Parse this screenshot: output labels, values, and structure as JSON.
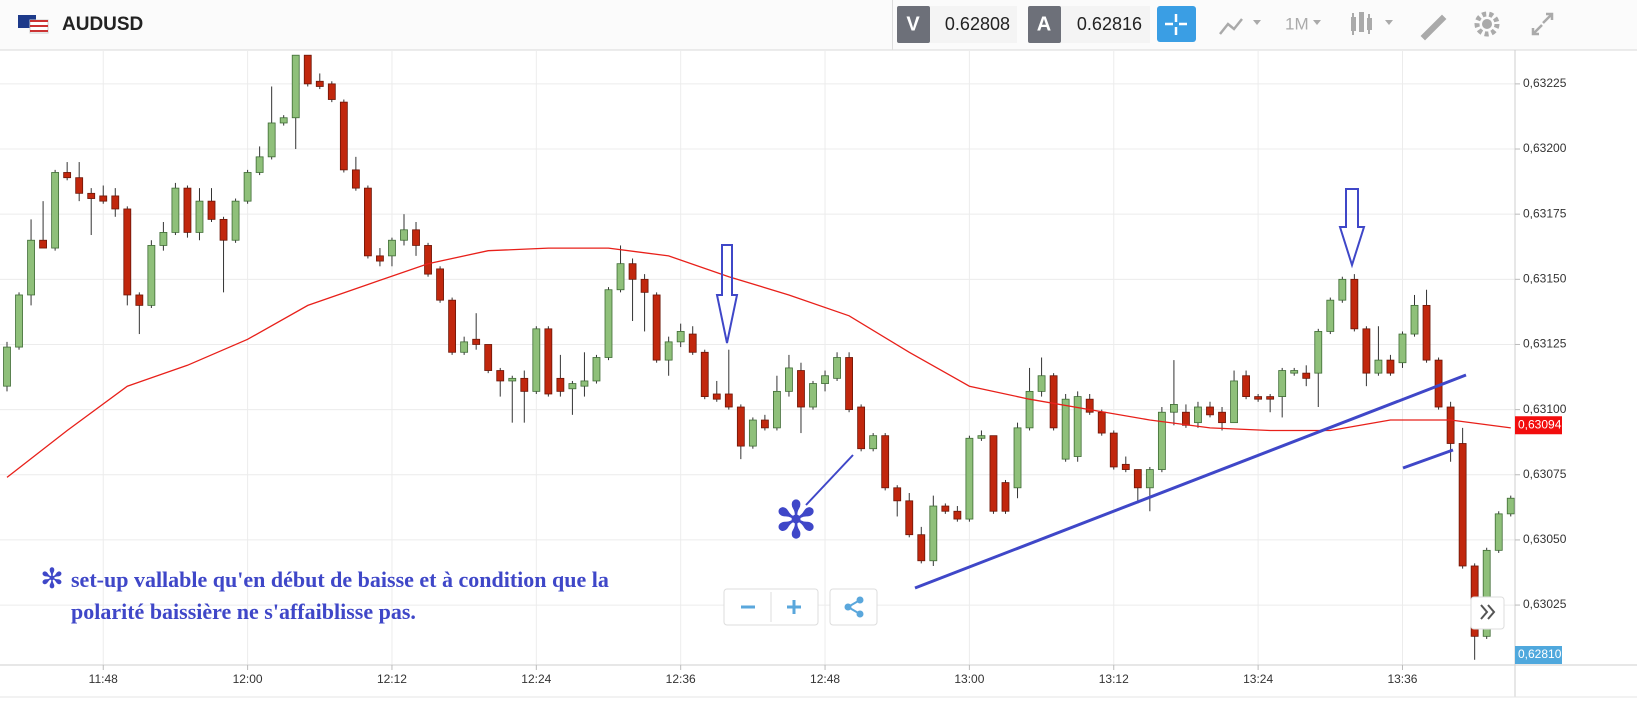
{
  "header": {
    "symbol": "AUDUSD",
    "bid_label": "V",
    "bid": "0.62808",
    "ask_label": "A",
    "ask": "0.62816",
    "timeframe": "1M"
  },
  "annotation": {
    "marker": "✻",
    "callout_marker": "✻",
    "lines": [
      "set-up vallable qu'en début de baisse et à condition que la",
      "polarité baissière ne s'affaiblisse pas."
    ]
  },
  "chart_data": {
    "type": "candlestick",
    "up_color": "#8fc07a",
    "down_color": "#c1270d",
    "grid": true,
    "ylim": [
      0.63002,
      0.63238
    ],
    "yticks": [
      {
        "value": 0.63025,
        "label": "0,63025"
      },
      {
        "value": 0.6305,
        "label": "0,63050"
      },
      {
        "value": 0.63075,
        "label": "0,63075"
      },
      {
        "value": 0.631,
        "label": "0,63100"
      },
      {
        "value": 0.63125,
        "label": "0,63125"
      },
      {
        "value": 0.6315,
        "label": "0,63150"
      },
      {
        "value": 0.63175,
        "label": "0,63175"
      },
      {
        "value": 0.632,
        "label": "0,63200"
      },
      {
        "value": 0.63225,
        "label": "0,63225"
      }
    ],
    "xticks": [
      "11:48",
      "12:00",
      "12:12",
      "12:24",
      "12:36",
      "12:48",
      "13:00",
      "13:12",
      "13:24",
      "13:36"
    ],
    "x": [
      "11:40",
      "11:41",
      "11:42",
      "11:43",
      "11:44",
      "11:45",
      "11:46",
      "11:47",
      "11:48",
      "11:49",
      "11:50",
      "11:51",
      "11:52",
      "11:53",
      "11:54",
      "11:55",
      "11:56",
      "11:57",
      "11:58",
      "11:59",
      "12:00",
      "12:01",
      "12:02",
      "12:03",
      "12:04",
      "12:05",
      "12:06",
      "12:07",
      "12:08",
      "12:09",
      "12:10",
      "12:11",
      "12:12",
      "12:13",
      "12:14",
      "12:15",
      "12:16",
      "12:17",
      "12:18",
      "12:19",
      "12:20",
      "12:21",
      "12:22",
      "12:23",
      "12:24",
      "12:25",
      "12:26",
      "12:27",
      "12:28",
      "12:29",
      "12:30",
      "12:31",
      "12:32",
      "12:33",
      "12:34",
      "12:35",
      "12:36",
      "12:37",
      "12:38",
      "12:39",
      "12:40",
      "12:41",
      "12:42",
      "12:43",
      "12:44",
      "12:45",
      "12:46",
      "12:47",
      "12:48",
      "12:49",
      "12:50",
      "12:51",
      "12:52",
      "12:53",
      "12:54",
      "12:55",
      "12:56",
      "12:57",
      "12:58",
      "12:59",
      "13:00",
      "13:01",
      "13:02",
      "13:03",
      "13:04",
      "13:05",
      "13:06",
      "13:07",
      "13:08",
      "13:09",
      "13:10",
      "13:11",
      "13:12",
      "13:13",
      "13:14",
      "13:15",
      "13:16",
      "13:17",
      "13:18",
      "13:19",
      "13:20",
      "13:21",
      "13:22",
      "13:23",
      "13:24",
      "13:25",
      "13:26",
      "13:27",
      "13:28",
      "13:29",
      "13:30",
      "13:31",
      "13:32",
      "13:33",
      "13:34",
      "13:35",
      "13:36",
      "13:37",
      "13:38",
      "13:39",
      "13:40",
      "13:41",
      "13:42",
      "13:43",
      "13:44",
      "13:45"
    ],
    "open": [
      0.63109,
      0.63124,
      0.63144,
      0.63165,
      0.63162,
      0.63191,
      0.63189,
      0.63183,
      0.63182,
      0.63182,
      0.63177,
      0.63144,
      0.6314,
      0.63163,
      0.63168,
      0.63185,
      0.63168,
      0.6318,
      0.63173,
      0.63165,
      0.6318,
      0.63191,
      0.63197,
      0.6321,
      0.63212,
      0.63236,
      0.63226,
      0.63225,
      0.63218,
      0.63192,
      0.63185,
      0.63159,
      0.63159,
      0.63165,
      0.63169,
      0.63163,
      0.63154,
      0.63142,
      0.63122,
      0.63127,
      0.63125,
      0.63115,
      0.63111,
      0.63112,
      0.63107,
      0.63131,
      0.63112,
      0.63108,
      0.63109,
      0.63111,
      0.6312,
      0.63146,
      0.63156,
      0.6315,
      0.63144,
      0.63119,
      0.63126,
      0.63129,
      0.63122,
      0.63106,
      0.63106,
      0.63101,
      0.63086,
      0.63096,
      0.63093,
      0.63107,
      0.63115,
      0.63101,
      0.6311,
      0.63112,
      0.6312,
      0.63101,
      0.63085,
      0.6309,
      0.6307,
      0.63065,
      0.63052,
      0.63042,
      0.63063,
      0.63061,
      0.63058,
      0.63089,
      0.6309,
      0.63072,
      0.6307,
      0.63093,
      0.63107,
      0.63113,
      0.63081,
      0.63082,
      0.63104,
      0.63099,
      0.63091,
      0.63079,
      0.63077,
      0.6307,
      0.63077,
      0.63099,
      0.63099,
      0.63095,
      0.63101,
      0.63099,
      0.63095,
      0.63113,
      0.63105,
      0.63105,
      0.63105,
      0.63114,
      0.63114,
      0.63114,
      0.6313,
      0.63142,
      0.6315,
      0.63131,
      0.63114,
      0.63119,
      0.63118,
      0.63129,
      0.6314,
      0.63119,
      0.63101,
      0.63087,
      0.6304,
      0.63013,
      0.63046,
      0.6306
    ],
    "high": [
      0.63126,
      0.63145,
      0.63173,
      0.6318,
      0.63192,
      0.63195,
      0.63195,
      0.63185,
      0.63186,
      0.63185,
      0.63178,
      0.63145,
      0.63165,
      0.63172,
      0.63187,
      0.63186,
      0.63185,
      0.63185,
      0.63174,
      0.63181,
      0.63192,
      0.63201,
      0.63224,
      0.63213,
      0.63236,
      0.63236,
      0.63229,
      0.63226,
      0.63219,
      0.63197,
      0.63186,
      0.63162,
      0.63166,
      0.63175,
      0.63172,
      0.63164,
      0.63155,
      0.63143,
      0.63128,
      0.63137,
      0.63125,
      0.63116,
      0.63113,
      0.63115,
      0.63132,
      0.63132,
      0.63121,
      0.63111,
      0.63122,
      0.63121,
      0.63147,
      0.63163,
      0.63158,
      0.63152,
      0.63145,
      0.63128,
      0.63133,
      0.63132,
      0.63123,
      0.63111,
      0.63123,
      0.63102,
      0.63097,
      0.63098,
      0.63113,
      0.63121,
      0.63118,
      0.63111,
      0.63115,
      0.63122,
      0.63122,
      0.63102,
      0.63091,
      0.63091,
      0.63071,
      0.63068,
      0.63055,
      0.63067,
      0.63064,
      0.63063,
      0.6309,
      0.63092,
      0.6309,
      0.63073,
      0.63095,
      0.63116,
      0.6312,
      0.63114,
      0.63106,
      0.63107,
      0.63106,
      0.631,
      0.63092,
      0.63082,
      0.63077,
      0.63078,
      0.63101,
      0.63119,
      0.63102,
      0.63103,
      0.63103,
      0.63101,
      0.63115,
      0.63115,
      0.63106,
      0.63106,
      0.63116,
      0.63116,
      0.63117,
      0.63131,
      0.63143,
      0.63151,
      0.63152,
      0.63132,
      0.63132,
      0.63121,
      0.6313,
      0.63144,
      0.63146,
      0.6312,
      0.63103,
      0.63093,
      0.63041,
      0.63047,
      0.63061,
      0.63067
    ],
    "low": [
      0.63107,
      0.63123,
      0.6314,
      0.63162,
      0.63161,
      0.63188,
      0.6318,
      0.63167,
      0.63179,
      0.63174,
      0.6314,
      0.63129,
      0.63139,
      0.63161,
      0.63167,
      0.63166,
      0.63165,
      0.63172,
      0.63145,
      0.63164,
      0.63179,
      0.6319,
      0.63196,
      0.63209,
      0.632,
      0.63224,
      0.63223,
      0.63218,
      0.63191,
      0.63184,
      0.63158,
      0.63155,
      0.63155,
      0.63163,
      0.63159,
      0.63151,
      0.63141,
      0.63121,
      0.63121,
      0.63123,
      0.63114,
      0.63105,
      0.63095,
      0.63095,
      0.63106,
      0.63105,
      0.63105,
      0.63098,
      0.63105,
      0.6311,
      0.63119,
      0.63145,
      0.63134,
      0.6313,
      0.63118,
      0.63113,
      0.63124,
      0.63121,
      0.63104,
      0.63103,
      0.631,
      0.63081,
      0.63085,
      0.63092,
      0.63092,
      0.63105,
      0.63091,
      0.631,
      0.63107,
      0.63111,
      0.63099,
      0.63084,
      0.63084,
      0.63069,
      0.63059,
      0.63051,
      0.63041,
      0.6304,
      0.6306,
      0.63057,
      0.63057,
      0.63088,
      0.6306,
      0.6306,
      0.63066,
      0.63092,
      0.63105,
      0.63092,
      0.6308,
      0.6308,
      0.63098,
      0.6309,
      0.63077,
      0.63076,
      0.63064,
      0.63061,
      0.63076,
      0.63094,
      0.63093,
      0.63093,
      0.63097,
      0.63092,
      0.63095,
      0.63104,
      0.63103,
      0.63099,
      0.63097,
      0.63113,
      0.63109,
      0.63101,
      0.63129,
      0.63141,
      0.6313,
      0.63109,
      0.63113,
      0.63113,
      0.63116,
      0.63128,
      0.63118,
      0.631,
      0.6308,
      0.63039,
      0.63004,
      0.63012,
      0.63045,
      0.63059
    ],
    "close": [
      0.63124,
      0.63144,
      0.63165,
      0.63162,
      0.63191,
      0.63189,
      0.63183,
      0.63181,
      0.6318,
      0.63177,
      0.63144,
      0.6314,
      0.63163,
      0.63168,
      0.63185,
      0.63168,
      0.6318,
      0.63173,
      0.63165,
      0.6318,
      0.63191,
      0.63197,
      0.6321,
      0.63212,
      0.63236,
      0.63225,
      0.63224,
      0.63219,
      0.63192,
      0.63185,
      0.63159,
      0.63157,
      0.63165,
      0.63169,
      0.63163,
      0.63152,
      0.63142,
      0.63122,
      0.63126,
      0.63125,
      0.63115,
      0.63111,
      0.63112,
      0.63107,
      0.63131,
      0.63106,
      0.63107,
      0.6311,
      0.63111,
      0.6312,
      0.63146,
      0.63156,
      0.6315,
      0.63145,
      0.63119,
      0.63126,
      0.6313,
      0.63122,
      0.63105,
      0.63104,
      0.63101,
      0.63086,
      0.63096,
      0.63093,
      0.63107,
      0.63116,
      0.63101,
      0.6311,
      0.63113,
      0.6312,
      0.631,
      0.63085,
      0.6309,
      0.6307,
      0.63065,
      0.63052,
      0.63042,
      0.63063,
      0.63061,
      0.63058,
      0.63089,
      0.6309,
      0.63061,
      0.63061,
      0.63093,
      0.63107,
      0.63113,
      0.63093,
      0.63104,
      0.63105,
      0.63099,
      0.63091,
      0.63078,
      0.63077,
      0.6307,
      0.63077,
      0.63099,
      0.63102,
      0.63094,
      0.63101,
      0.63098,
      0.63095,
      0.63111,
      0.63105,
      0.63104,
      0.63104,
      0.63115,
      0.63115,
      0.63112,
      0.6313,
      0.63142,
      0.6315,
      0.63131,
      0.63114,
      0.63119,
      0.63114,
      0.63129,
      0.6314,
      0.63119,
      0.63101,
      0.63087,
      0.6304,
      0.63013,
      0.63046,
      0.6306,
      0.63066
    ],
    "moving_average": {
      "color": "#e8201a",
      "x": [
        "11:40",
        "11:45",
        "11:50",
        "11:55",
        "12:00",
        "12:05",
        "12:10",
        "12:15",
        "12:20",
        "12:25",
        "12:30",
        "12:35",
        "12:40",
        "12:45",
        "12:50",
        "12:55",
        "13:00",
        "13:05",
        "13:10",
        "13:15",
        "13:20",
        "13:25",
        "13:30",
        "13:35",
        "13:40",
        "13:45"
      ],
      "values": [
        0.63074,
        0.63092,
        0.63109,
        0.63117,
        0.63127,
        0.6314,
        0.63148,
        0.63156,
        0.63161,
        0.63162,
        0.63162,
        0.63159,
        0.63151,
        0.63144,
        0.63136,
        0.63122,
        0.63109,
        0.63104,
        0.631,
        0.63096,
        0.63093,
        0.63092,
        0.63092,
        0.63096,
        0.63096,
        0.63093
      ]
    },
    "price_tags": [
      {
        "value": 0.63094,
        "label": "0,63094",
        "color": "#f20d0d"
      },
      {
        "label": "0,62810",
        "color": "#4fa8dd"
      }
    ]
  }
}
